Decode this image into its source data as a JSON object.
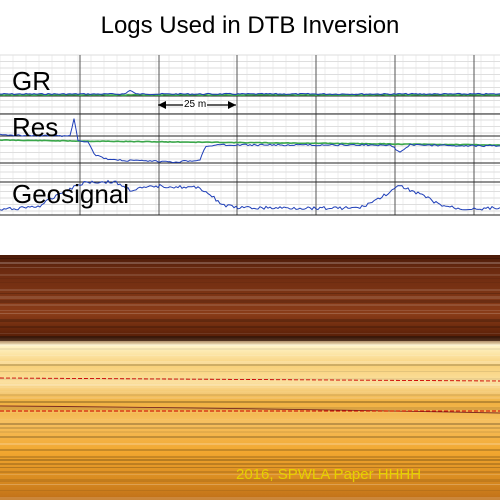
{
  "title": "Logs Used in DTB Inversion",
  "tracks": {
    "gr": "GR",
    "res": "Res",
    "geo": "Geosignal"
  },
  "scale_label": "25 m",
  "citation": "2016, SPWLA Paper  HHHH",
  "colors": {
    "log_curve": "#1f3fb8",
    "reference_curve": "#3aa64a",
    "grid": "#bdbdbd",
    "major_grid": "#222222",
    "boundary_line": "#cc0000",
    "citation": "#e6d000",
    "section_top": "#4a1a08",
    "section_bottom": "#f6b830"
  }
}
